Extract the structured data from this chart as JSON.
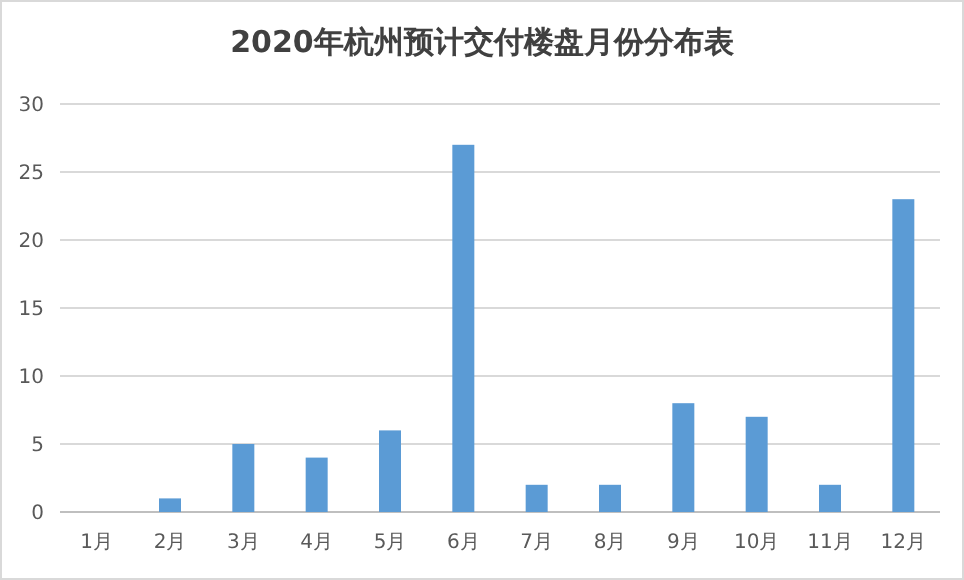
{
  "chart_data": {
    "type": "bar",
    "title": "2020年杭州预计交付楼盘月份分布表",
    "categories": [
      "1月",
      "2月",
      "3月",
      "4月",
      "5月",
      "6月",
      "7月",
      "8月",
      "9月",
      "10月",
      "11月",
      "12月"
    ],
    "values": [
      0,
      1,
      5,
      4,
      6,
      27,
      2,
      2,
      8,
      7,
      2,
      23
    ],
    "color": "#5b9bd5",
    "ylim": [
      0,
      30
    ],
    "yticks": [
      0,
      5,
      10,
      15,
      20,
      25,
      30
    ],
    "grid": "y"
  }
}
